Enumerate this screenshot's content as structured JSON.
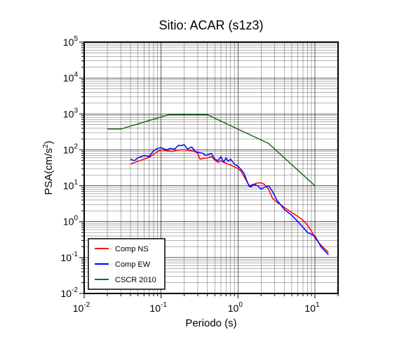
{
  "chart_data": {
    "type": "line",
    "title": "Sitio: ACAR (s1z3)",
    "xlabel": "Periodo (s)",
    "ylabel_main": "PSA(cm/s",
    "ylabel_sup": "2",
    "ylabel_close": ")",
    "x_scale": "log",
    "y_scale": "log",
    "xlim": [
      0.01,
      20
    ],
    "ylim": [
      0.01,
      100000
    ],
    "grid": true,
    "legend_position": "bottom-left",
    "x_ticks": [
      {
        "base": "10",
        "exp": "-2",
        "value": 0.01
      },
      {
        "base": "10",
        "exp": "-1",
        "value": 0.1
      },
      {
        "base": "10",
        "exp": "0",
        "value": 1
      },
      {
        "base": "10",
        "exp": "1",
        "value": 10
      }
    ],
    "y_ticks": [
      {
        "base": "10",
        "exp": "-2",
        "value": 0.01
      },
      {
        "base": "10",
        "exp": "-1",
        "value": 0.1
      },
      {
        "base": "10",
        "exp": "0",
        "value": 1
      },
      {
        "base": "10",
        "exp": "1",
        "value": 10
      },
      {
        "base": "10",
        "exp": "2",
        "value": 100
      },
      {
        "base": "10",
        "exp": "3",
        "value": 1000
      },
      {
        "base": "10",
        "exp": "4",
        "value": 10000
      },
      {
        "base": "10",
        "exp": "5",
        "value": 100000
      }
    ],
    "series": [
      {
        "name": "Comp NS",
        "color": "#ff0000",
        "points": [
          [
            0.04,
            40
          ],
          [
            0.05,
            48
          ],
          [
            0.06,
            55
          ],
          [
            0.07,
            62
          ],
          [
            0.08,
            75
          ],
          [
            0.09,
            90
          ],
          [
            0.1,
            100
          ],
          [
            0.12,
            95
          ],
          [
            0.14,
            90
          ],
          [
            0.16,
            98
          ],
          [
            0.18,
            100
          ],
          [
            0.2,
            100
          ],
          [
            0.22,
            98
          ],
          [
            0.25,
            95
          ],
          [
            0.28,
            88
          ],
          [
            0.3,
            80
          ],
          [
            0.32,
            55
          ],
          [
            0.36,
            58
          ],
          [
            0.4,
            60
          ],
          [
            0.45,
            65
          ],
          [
            0.5,
            52
          ],
          [
            0.55,
            45
          ],
          [
            0.6,
            50
          ],
          [
            0.7,
            42
          ],
          [
            0.8,
            38
          ],
          [
            1.0,
            30
          ],
          [
            1.1,
            25
          ],
          [
            1.2,
            18
          ],
          [
            1.4,
            10
          ],
          [
            1.6,
            11
          ],
          [
            1.8,
            12
          ],
          [
            2.0,
            12
          ],
          [
            2.2,
            11
          ],
          [
            2.5,
            8
          ],
          [
            2.8,
            4.5
          ],
          [
            3.2,
            3.5
          ],
          [
            4.0,
            2.5
          ],
          [
            5.0,
            1.8
          ],
          [
            6.0,
            1.4
          ],
          [
            7.0,
            1.1
          ],
          [
            8.0,
            0.8
          ],
          [
            9.0,
            0.55
          ],
          [
            10.0,
            0.35
          ],
          [
            12.0,
            0.22
          ],
          [
            15.0,
            0.14
          ]
        ]
      },
      {
        "name": "Comp EW",
        "color": "#0000ff",
        "points": [
          [
            0.04,
            55
          ],
          [
            0.045,
            50
          ],
          [
            0.05,
            60
          ],
          [
            0.06,
            70
          ],
          [
            0.07,
            65
          ],
          [
            0.08,
            95
          ],
          [
            0.09,
            110
          ],
          [
            0.1,
            115
          ],
          [
            0.11,
            105
          ],
          [
            0.12,
            100
          ],
          [
            0.13,
            110
          ],
          [
            0.15,
            105
          ],
          [
            0.17,
            135
          ],
          [
            0.18,
            130
          ],
          [
            0.2,
            140
          ],
          [
            0.22,
            105
          ],
          [
            0.25,
            120
          ],
          [
            0.28,
            90
          ],
          [
            0.3,
            85
          ],
          [
            0.35,
            80
          ],
          [
            0.38,
            70
          ],
          [
            0.4,
            72
          ],
          [
            0.45,
            80
          ],
          [
            0.5,
            55
          ],
          [
            0.55,
            50
          ],
          [
            0.6,
            65
          ],
          [
            0.65,
            45
          ],
          [
            0.7,
            60
          ],
          [
            0.75,
            48
          ],
          [
            0.8,
            55
          ],
          [
            0.9,
            40
          ],
          [
            1.0,
            35
          ],
          [
            1.1,
            28
          ],
          [
            1.2,
            22
          ],
          [
            1.3,
            14
          ],
          [
            1.4,
            9.5
          ],
          [
            1.5,
            9.5
          ],
          [
            1.6,
            11
          ],
          [
            1.8,
            10
          ],
          [
            2.0,
            8
          ],
          [
            2.2,
            9
          ],
          [
            2.5,
            10
          ],
          [
            2.8,
            7
          ],
          [
            3.2,
            4
          ],
          [
            4.0,
            2.2
          ],
          [
            5.0,
            1.5
          ],
          [
            6.0,
            1.0
          ],
          [
            7.0,
            0.7
          ],
          [
            8.0,
            0.5
          ],
          [
            10.0,
            0.4
          ],
          [
            12.0,
            0.2
          ],
          [
            15.0,
            0.12
          ]
        ]
      },
      {
        "name": "CSCR 2010",
        "color": "#1a6e1a",
        "points": [
          [
            0.02,
            380
          ],
          [
            0.03,
            380
          ],
          [
            0.125,
            950
          ],
          [
            0.4,
            950
          ],
          [
            2.5,
            150
          ],
          [
            10.0,
            10
          ]
        ]
      }
    ]
  }
}
